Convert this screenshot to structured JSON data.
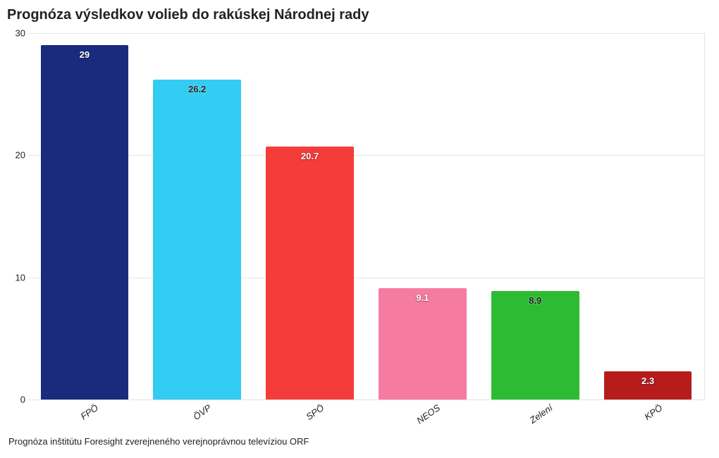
{
  "title": "Prognóza výsledkov volieb do rakúskej Národnej rady",
  "footnote": "Prognóza inštitútu Foresight zverejneného verejnoprávnou televíziou ORF",
  "chart": {
    "type": "bar",
    "ylim": [
      0,
      30
    ],
    "ytick_step": 10,
    "yticks": [
      0,
      10,
      20,
      30
    ],
    "background_color": "#ffffff",
    "grid_color": "#e4e4e4",
    "bar_width_pct": 78,
    "title_fontsize": 20,
    "label_fontsize": 13,
    "value_label_color_light": "#ffffff",
    "value_label_color_dark": "#222222",
    "series": [
      {
        "label": "FPÖ",
        "value": 29.0,
        "color": "#1a2a7c",
        "text_light": true
      },
      {
        "label": "ÖVP",
        "value": 26.2,
        "color": "#33ccf2",
        "text_light": false
      },
      {
        "label": "SPÖ",
        "value": 20.7,
        "color": "#f43d3a",
        "text_light": true
      },
      {
        "label": "NEOS",
        "value": 9.1,
        "color": "#f67ba3",
        "text_light": true
      },
      {
        "label": "Zelení",
        "value": 8.9,
        "color": "#2dbb33",
        "text_light": false
      },
      {
        "label": "KPÖ",
        "value": 2.3,
        "color": "#b61c1c",
        "text_light": true
      }
    ]
  }
}
